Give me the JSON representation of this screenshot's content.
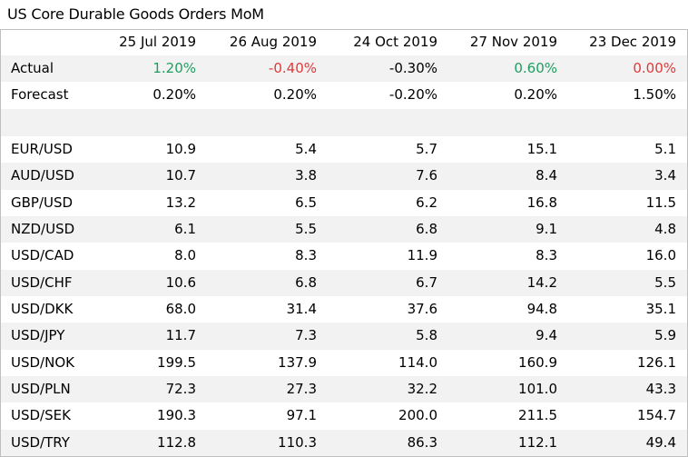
{
  "title": "US Core Durable Goods Orders MoM",
  "columns": [
    "25 Jul 2019",
    "26 Aug 2019",
    "24 Oct 2019",
    "27 Nov 2019",
    "23 Dec 2019"
  ],
  "actual": {
    "label": "Actual",
    "values": [
      "1.20%",
      "-0.40%",
      "-0.30%",
      "0.60%",
      "0.00%"
    ]
  },
  "forecast": {
    "label": "Forecast",
    "values": [
      "0.20%",
      "0.20%",
      "-0.20%",
      "0.20%",
      "1.50%"
    ]
  },
  "colors": {
    "positive": "#1e9e61",
    "negative": "#e03a3a",
    "row_shade": "#f2f2f2",
    "border": "#bfbfbf"
  },
  "pairs": [
    {
      "label": "EUR/USD",
      "values": [
        "10.9",
        "5.4",
        "5.7",
        "15.1",
        "5.1"
      ]
    },
    {
      "label": "AUD/USD",
      "values": [
        "10.7",
        "3.8",
        "7.6",
        "8.4",
        "3.4"
      ]
    },
    {
      "label": "GBP/USD",
      "values": [
        "13.2",
        "6.5",
        "6.2",
        "16.8",
        "11.5"
      ]
    },
    {
      "label": "NZD/USD",
      "values": [
        "6.1",
        "5.5",
        "6.8",
        "9.1",
        "4.8"
      ]
    },
    {
      "label": "USD/CAD",
      "values": [
        "8.0",
        "8.3",
        "11.9",
        "8.3",
        "16.0"
      ]
    },
    {
      "label": "USD/CHF",
      "values": [
        "10.6",
        "6.8",
        "6.7",
        "14.2",
        "5.5"
      ]
    },
    {
      "label": "USD/DKK",
      "values": [
        "68.0",
        "31.4",
        "37.6",
        "94.8",
        "35.1"
      ]
    },
    {
      "label": "USD/JPY",
      "values": [
        "11.7",
        "7.3",
        "5.8",
        "9.4",
        "5.9"
      ]
    },
    {
      "label": "USD/NOK",
      "values": [
        "199.5",
        "137.9",
        "114.0",
        "160.9",
        "126.1"
      ]
    },
    {
      "label": "USD/PLN",
      "values": [
        "72.3",
        "27.3",
        "32.2",
        "101.0",
        "43.3"
      ]
    },
    {
      "label": "USD/SEK",
      "values": [
        "190.3",
        "97.1",
        "200.0",
        "211.5",
        "154.7"
      ]
    },
    {
      "label": "USD/TRY",
      "values": [
        "112.8",
        "110.3",
        "86.3",
        "112.1",
        "49.4"
      ]
    }
  ]
}
